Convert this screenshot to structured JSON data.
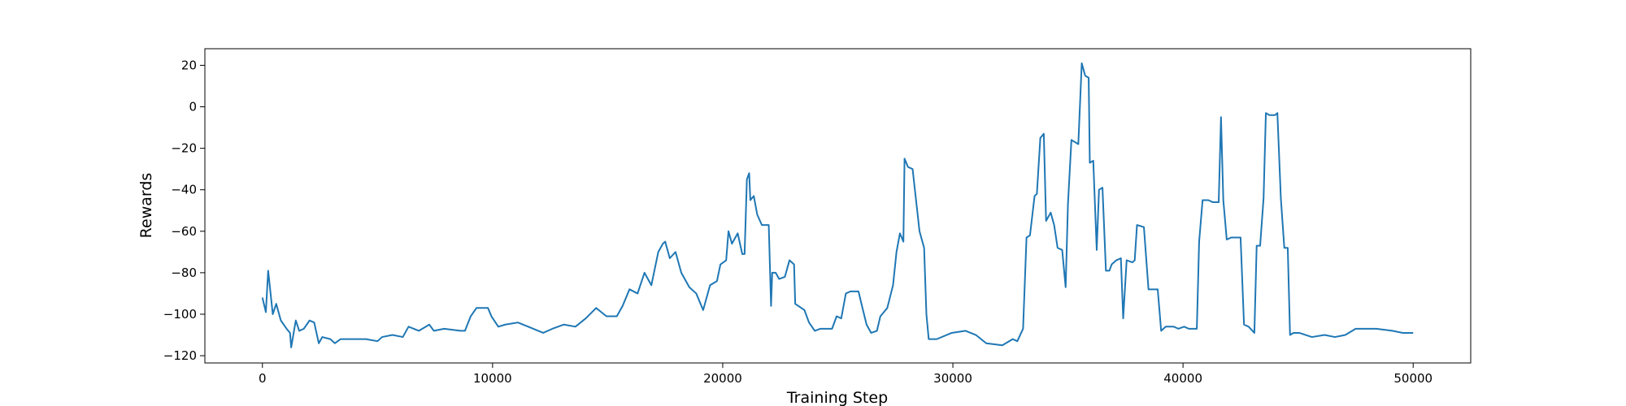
{
  "chart_data": {
    "type": "line",
    "x_label": "Training Step",
    "y_label": "Rewards",
    "color": "#1f77b4",
    "xlim": [
      -2500,
      52500
    ],
    "ylim": [
      -123.5,
      28
    ],
    "xticks": [
      0,
      10000,
      20000,
      30000,
      40000,
      50000
    ],
    "yticks": [
      {
        "value": -120,
        "label": "−120"
      },
      {
        "value": -100,
        "label": "−100"
      },
      {
        "value": -80,
        "label": "−80"
      },
      {
        "value": -60,
        "label": "−60"
      },
      {
        "value": -40,
        "label": "−40"
      },
      {
        "value": -20,
        "label": "−20"
      },
      0,
      20
    ],
    "x": [
      0,
      150,
      250,
      450,
      600,
      800,
      1050,
      1200,
      1250,
      1450,
      1600,
      1800,
      2050,
      2250,
      2450,
      2600,
      2950,
      3150,
      3400,
      3850,
      4500,
      5000,
      5200,
      5650,
      6100,
      6350,
      6800,
      7250,
      7450,
      7900,
      8600,
      8800,
      9050,
      9300,
      9500,
      9800,
      9950,
      10250,
      10550,
      11100,
      11550,
      12200,
      12600,
      13100,
      13600,
      14050,
      14500,
      14950,
      15400,
      15650,
      15950,
      16300,
      16600,
      16900,
      17200,
      17400,
      17500,
      17700,
      17950,
      18200,
      18550,
      18850,
      19150,
      19450,
      19750,
      19900,
      20150,
      20250,
      20400,
      20650,
      20850,
      20950,
      21050,
      21150,
      21200,
      21350,
      21500,
      21700,
      22000,
      22100,
      22150,
      22300,
      22450,
      22700,
      22900,
      23100,
      23150,
      23550,
      23750,
      24000,
      24250,
      24750,
      24950,
      25150,
      25350,
      25550,
      25900,
      26050,
      26250,
      26450,
      26700,
      26850,
      27150,
      27400,
      27550,
      27700,
      27850,
      27900,
      28050,
      28250,
      28400,
      28550,
      28750,
      28850,
      28950,
      29300,
      29950,
      30550,
      31000,
      31450,
      32150,
      32600,
      32800,
      33050,
      33200,
      33350,
      33550,
      33650,
      33800,
      33950,
      34050,
      34250,
      34400,
      34550,
      34750,
      34900,
      35000,
      35150,
      35300,
      35450,
      35600,
      35750,
      35900,
      35950,
      36100,
      36250,
      36350,
      36500,
      36650,
      36800,
      36900,
      37100,
      37300,
      37400,
      37550,
      37800,
      37900,
      38000,
      38300,
      38500,
      38750,
      38900,
      39050,
      39250,
      39600,
      39800,
      40050,
      40250,
      40600,
      40700,
      40850,
      41100,
      41300,
      41550,
      41650,
      41750,
      41900,
      42100,
      42500,
      42650,
      42850,
      43100,
      43200,
      43350,
      43500,
      43600,
      43750,
      44000,
      44100,
      44250,
      44400,
      44550,
      44650,
      44800,
      45050,
      45600,
      46150,
      46600,
      47050,
      47500,
      47950,
      48400,
      49100,
      49550,
      50000
    ],
    "values": [
      -92,
      -99,
      -79,
      -100,
      -95,
      -103,
      -107,
      -109,
      -116,
      -103,
      -108,
      -107,
      -103,
      -104,
      -114,
      -111,
      -112,
      -114,
      -112,
      -112,
      -112,
      -113,
      -111,
      -110,
      -111,
      -106,
      -108,
      -105,
      -108,
      -107,
      -108,
      -108,
      -101,
      -97,
      -97,
      -97,
      -101,
      -106,
      -105,
      -104,
      -106,
      -109,
      -107,
      -105,
      -106,
      -102,
      -97,
      -101,
      -101,
      -96,
      -88,
      -90,
      -80,
      -86,
      -70,
      -66,
      -65,
      -73,
      -70,
      -80,
      -87,
      -90,
      -98,
      -86,
      -84,
      -76,
      -74,
      -60,
      -66,
      -61,
      -71,
      -71,
      -35,
      -32,
      -45,
      -43,
      -52,
      -57,
      -57,
      -96,
      -80,
      -80,
      -83,
      -82,
      -74,
      -76,
      -95,
      -98,
      -104,
      -108,
      -107,
      -107,
      -101,
      -102,
      -90,
      -89,
      -89,
      -96,
      -105,
      -109,
      -108,
      -101,
      -97,
      -86,
      -70,
      -61,
      -65,
      -25,
      -29,
      -30,
      -45,
      -60,
      -68,
      -100,
      -112,
      -112,
      -109,
      -108,
      -110,
      -114,
      -115,
      -112,
      -113,
      -107,
      -63,
      -62,
      -43,
      -42,
      -15,
      -13,
      -55,
      -51,
      -57,
      -68,
      -69,
      -87,
      -47,
      -16,
      -17,
      -18,
      21,
      15,
      14,
      -27,
      -26,
      -69,
      -40,
      -39,
      -79,
      -79,
      -76,
      -74,
      -73,
      -102,
      -74,
      -75,
      -74,
      -57,
      -58,
      -88,
      -88,
      -88,
      -108,
      -106,
      -106,
      -107,
      -106,
      -107,
      -107,
      -65,
      -45,
      -45,
      -46,
      -46,
      -5,
      -45,
      -64,
      -63,
      -63,
      -105,
      -106,
      -109,
      -67,
      -67,
      -44,
      -3,
      -4,
      -4,
      -3,
      -44,
      -68,
      -68,
      -110,
      -109,
      -109,
      -111,
      -110,
      -111,
      -110,
      -107,
      -107,
      -107,
      -108,
      -109,
      -109
    ]
  }
}
